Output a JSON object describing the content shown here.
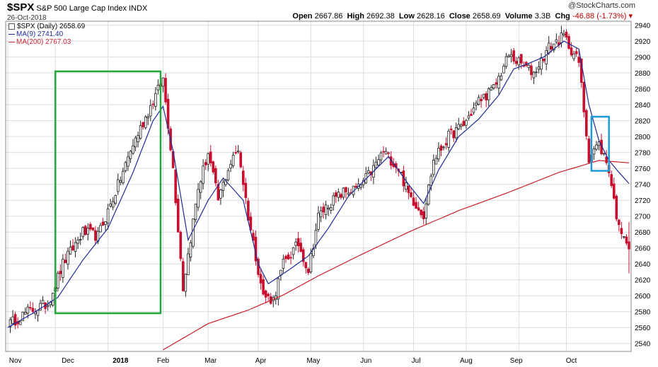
{
  "header": {
    "symbol": "$SPX",
    "name": "S&P 500 Large Cap Index",
    "exchange": "INDX",
    "date": "26-Oct-2018",
    "watermark": "@StockCharts.com",
    "open_label": "Open",
    "open": "2667.86",
    "high_label": "High",
    "high": "2692.38",
    "low_label": "Low",
    "low": "2628.16",
    "close_label": "Close",
    "close": "2658.69",
    "volume_label": "Volume",
    "volume": "3.3B",
    "chg_label": "Chg",
    "chg": "-46.88 (-1.73%)"
  },
  "legend": {
    "price": "$SPX (Daily) 2658.69",
    "ma9": "MA(9) 2741.40",
    "ma200": "MA(200) 2767.03"
  },
  "colors": {
    "up": "#222222",
    "down": "#c8102e",
    "ma9": "#1e2c96",
    "ma200": "#cc1f2b",
    "box1": "#22a83a",
    "box2": "#1e9bd7",
    "grid": "#dcdcdc"
  },
  "chart_data": {
    "type": "candlestick",
    "ylim": [
      2530,
      2945
    ],
    "yticks": [
      2540,
      2560,
      2580,
      2600,
      2620,
      2640,
      2660,
      2680,
      2700,
      2720,
      2740,
      2760,
      2780,
      2800,
      2820,
      2840,
      2860,
      2880,
      2900,
      2920,
      2940
    ],
    "month_labels": [
      "Nov",
      "Dec",
      "2018",
      "Feb",
      "Mar",
      "Apr",
      "May",
      "Jun",
      "Jul",
      "Aug",
      "Sep",
      "Oct"
    ],
    "month_label_x_day": [
      3,
      24,
      45,
      62,
      81,
      101,
      122,
      143,
      163,
      183,
      203,
      225
    ],
    "gridline_day": [
      0,
      19,
      40,
      62,
      80,
      100,
      121,
      142,
      162,
      183,
      204,
      223
    ],
    "n_days": 248,
    "price_path": [
      [
        0,
        2563
      ],
      [
        8,
        2580
      ],
      [
        16,
        2590
      ],
      [
        22,
        2640
      ],
      [
        30,
        2680
      ],
      [
        36,
        2675
      ],
      [
        42,
        2722
      ],
      [
        50,
        2790
      ],
      [
        58,
        2845
      ],
      [
        62,
        2872
      ],
      [
        66,
        2760
      ],
      [
        70,
        2610
      ],
      [
        76,
        2735
      ],
      [
        80,
        2780
      ],
      [
        84,
        2720
      ],
      [
        88,
        2760
      ],
      [
        92,
        2785
      ],
      [
        96,
        2700
      ],
      [
        102,
        2600
      ],
      [
        106,
        2595
      ],
      [
        110,
        2640
      ],
      [
        116,
        2665
      ],
      [
        120,
        2632
      ],
      [
        124,
        2700
      ],
      [
        128,
        2715
      ],
      [
        134,
        2730
      ],
      [
        140,
        2735
      ],
      [
        146,
        2760
      ],
      [
        150,
        2782
      ],
      [
        156,
        2760
      ],
      [
        160,
        2728
      ],
      [
        166,
        2702
      ],
      [
        170,
        2770
      ],
      [
        176,
        2800
      ],
      [
        182,
        2815
      ],
      [
        188,
        2845
      ],
      [
        194,
        2860
      ],
      [
        200,
        2902
      ],
      [
        204,
        2893
      ],
      [
        210,
        2880
      ],
      [
        216,
        2912
      ],
      [
        222,
        2926
      ],
      [
        228,
        2893
      ],
      [
        232,
        2774
      ],
      [
        234,
        2784
      ],
      [
        236,
        2790
      ],
      [
        238,
        2776
      ],
      [
        240,
        2759
      ],
      [
        242,
        2720
      ],
      [
        244,
        2684
      ],
      [
        246,
        2680
      ],
      [
        248,
        2659
      ]
    ],
    "ma9_path": [
      [
        0,
        2560
      ],
      [
        10,
        2578
      ],
      [
        20,
        2598
      ],
      [
        30,
        2645
      ],
      [
        40,
        2685
      ],
      [
        50,
        2755
      ],
      [
        58,
        2820
      ],
      [
        62,
        2838
      ],
      [
        66,
        2782
      ],
      [
        72,
        2670
      ],
      [
        80,
        2720
      ],
      [
        86,
        2748
      ],
      [
        94,
        2720
      ],
      [
        100,
        2640
      ],
      [
        104,
        2615
      ],
      [
        112,
        2632
      ],
      [
        120,
        2650
      ],
      [
        128,
        2685
      ],
      [
        136,
        2725
      ],
      [
        144,
        2750
      ],
      [
        152,
        2775
      ],
      [
        160,
        2740
      ],
      [
        166,
        2716
      ],
      [
        172,
        2758
      ],
      [
        180,
        2800
      ],
      [
        188,
        2822
      ],
      [
        196,
        2852
      ],
      [
        202,
        2885
      ],
      [
        208,
        2892
      ],
      [
        214,
        2900
      ],
      [
        222,
        2920
      ],
      [
        228,
        2910
      ],
      [
        232,
        2840
      ],
      [
        236,
        2795
      ],
      [
        240,
        2770
      ],
      [
        244,
        2755
      ],
      [
        248,
        2741
      ]
    ],
    "ma200_path": [
      [
        62,
        2532
      ],
      [
        80,
        2565
      ],
      [
        96,
        2582
      ],
      [
        110,
        2601
      ],
      [
        124,
        2625
      ],
      [
        140,
        2650
      ],
      [
        160,
        2680
      ],
      [
        180,
        2707
      ],
      [
        200,
        2730
      ],
      [
        220,
        2755
      ],
      [
        236,
        2770
      ],
      [
        248,
        2767
      ]
    ],
    "highlight_boxes": [
      {
        "color": "box1",
        "day_start": 19,
        "day_end": 61,
        "price_top": 2882,
        "price_bottom": 2578
      },
      {
        "color": "box2",
        "day_start": 233,
        "day_end": 240,
        "price_top": 2825,
        "price_bottom": 2757
      }
    ]
  }
}
